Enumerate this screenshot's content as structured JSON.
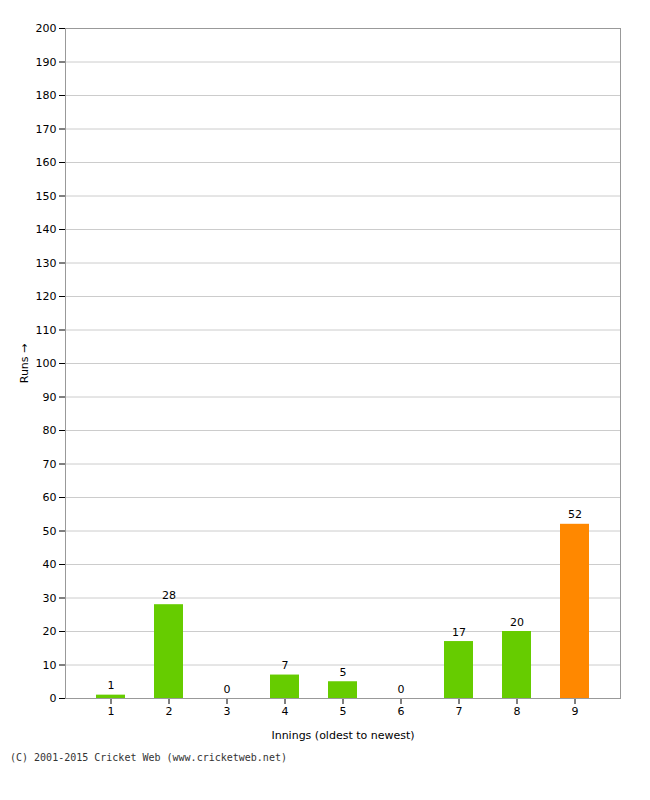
{
  "chart_data": {
    "type": "bar",
    "categories": [
      "1",
      "2",
      "3",
      "4",
      "5",
      "6",
      "7",
      "8",
      "9"
    ],
    "values": [
      1,
      28,
      0,
      7,
      5,
      0,
      17,
      20,
      52
    ],
    "colors": [
      "#66cc00",
      "#66cc00",
      "#66cc00",
      "#66cc00",
      "#66cc00",
      "#66cc00",
      "#66cc00",
      "#66cc00",
      "#ff8800"
    ],
    "xlabel": "Innings (oldest to newest)",
    "ylabel": "Runs",
    "ylim": [
      0,
      200
    ],
    "yticks": [
      0,
      10,
      20,
      30,
      40,
      50,
      60,
      70,
      80,
      90,
      100,
      110,
      120,
      130,
      140,
      150,
      160,
      170,
      180,
      190,
      200
    ],
    "grid": true,
    "data_labels": true,
    "caption": "(C) 2001-2015 Cricket Web (www.cricketweb.net)"
  }
}
